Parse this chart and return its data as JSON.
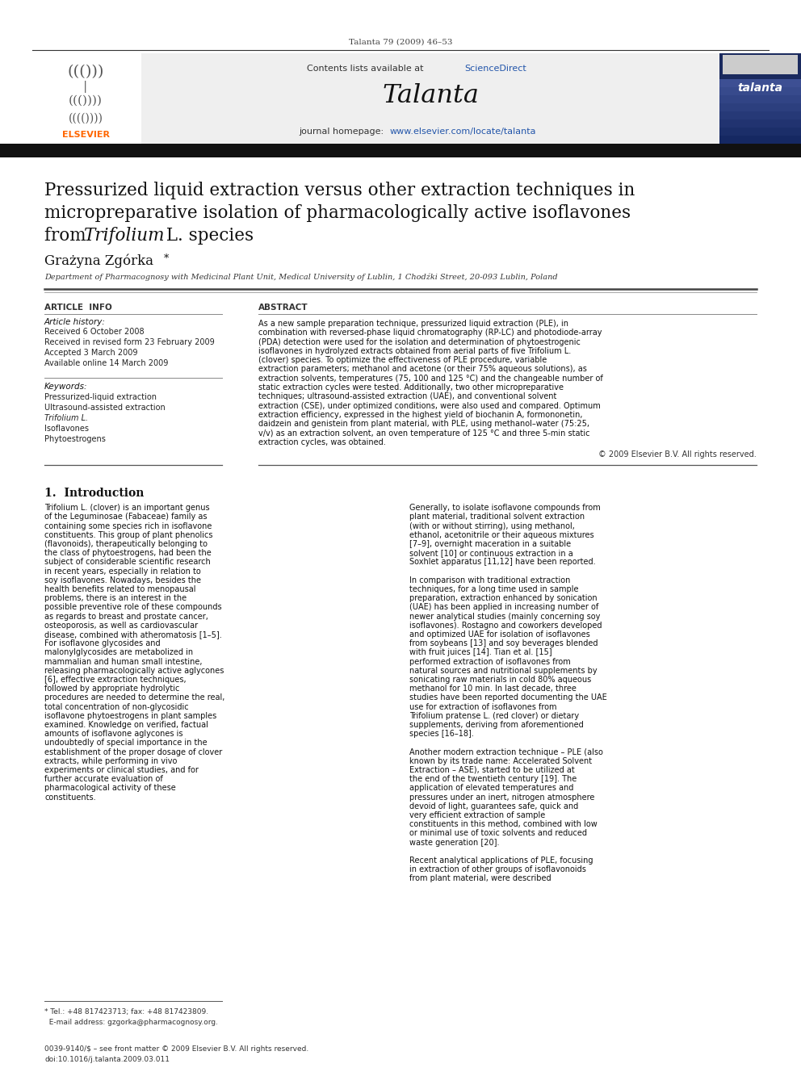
{
  "journal_info": "Talanta 79 (2009) 46–53",
  "contents_text": "Contents lists available at ScienceDirect",
  "sciencedirect_text": "ScienceDirect",
  "journal_name": "Talanta",
  "journal_homepage_prefix": "journal homepage: ",
  "journal_homepage_url": "www.elsevier.com/locate/talanta",
  "title_line1": "Pressurized liquid extraction versus other extraction techniques in",
  "title_line2": "micropreparative isolation of pharmacologically active isoflavones",
  "title_line3_pre": "from ",
  "title_line3_italic": "Trifolium",
  "title_line3_post": " L. species",
  "author_name": "Grażyna Zgórka",
  "author_star": "*",
  "affiliation": "Department of Pharmacognosy with Medicinal Plant Unit, Medical University of Lublin, 1 Chodźki Street, 20-093 Lublin, Poland",
  "article_info_header": "ARTICLE  INFO",
  "article_history_header": "Article history:",
  "received1": "Received 6 October 2008",
  "received2": "Received in revised form 23 February 2009",
  "accepted": "Accepted 3 March 2009",
  "available": "Available online 14 March 2009",
  "keywords_header": "Keywords:",
  "keywords": [
    "Pressurized-liquid extraction",
    "Ultrasound-assisted extraction",
    "Trifolium L.",
    "Isoflavones",
    "Phytoestrogens"
  ],
  "keywords_italic_index": 2,
  "abstract_header": "ABSTRACT",
  "abstract_text": "As a new sample preparation technique, pressurized liquid extraction (PLE), in combination with reversed-phase liquid chromatography (RP-LC) and photodiode-array (PDA) detection were used for the isolation and determination of phytoestrogenic isoflavones in hydrolyzed extracts obtained from aerial parts of five Trifolium L. (clover) species. To optimize the effectiveness of PLE procedure, variable extraction parameters; methanol and acetone (or their 75% aqueous solutions), as extraction solvents, temperatures (75, 100 and 125 °C) and the changeable number of static extraction cycles were tested. Additionally, two other micropreparative techniques; ultrasound-assisted extraction (UAE), and conventional solvent extraction (CSE), under optimized conditions, were also used and compared. Optimum extraction efficiency, expressed in the highest yield of biochanin A, formononetin, daidzein and genistein from plant material, with PLE, using methanol–water (75:25, v/v) as an extraction solvent, an oven temperature of 125 °C and three 5-min static extraction cycles, was obtained.",
  "copyright": "© 2009 Elsevier B.V. All rights reserved.",
  "intro_header": "1.  Introduction",
  "intro_col1_para1": "    Trifolium L. (clover) is an important genus of the Leguminosae (Fabaceae) family as containing some species rich in isoflavone constituents. This group of plant phenolics (flavonoids), therapeutically belonging to the class of phytoestrogens, had been the subject of considerable scientific research in recent years, especially in relation to soy isoflavones. Nowadays, besides the health benefits related to menopausal problems, there is an interest in the possible preventive role of these compounds as regards to breast and prostate cancer, osteoporosis, as well as cardiovascular disease, combined with atheromatosis [1–5]. For isoflavone glycosides and malonylglycosides are metabolized in mammalian and human small intestine, releasing pharmacologically active aglycones [6], effective extraction techniques, followed by appropriate hydrolytic procedures are needed to determine the real, total concentration of non-glycosidic isoflavone phytoestrogens in plant samples examined. Knowledge on verified, factual amounts of isoflavone aglycones is undoubtedly of special importance in the establishment of the proper dosage of clover extracts, while performing in vivo experiments or clinical studies, and for further accurate evaluation of pharmacological activity of these constituents.",
  "intro_col2_para1": "    Generally, to isolate isoflavone compounds from plant material, traditional solvent extraction (with or without stirring), using methanol, ethanol, acetonitrile or their aqueous mixtures [7–9], overnight maceration in a suitable solvent [10] or continuous extraction in a Soxhlet apparatus [11,12] have been reported.",
  "intro_col2_para2": "    In comparison with traditional extraction techniques, for a long time used in sample preparation, extraction enhanced by sonication (UAE) has been applied in increasing number of newer analytical studies (mainly concerning soy isoflavones). Rostagno and coworkers developed and optimized UAE for isolation of isoflavones from soybeans [13] and soy beverages blended with fruit juices [14]. Tian et al. [15] performed extraction of isoflavones from natural sources and nutritional supplements by sonicating raw materials in cold 80% aqueous methanol for 10 min. In last decade, three studies have been reported documenting the UAE use for extraction of isoflavones from Trifolium pratense L. (red clover) or dietary supplements, deriving from aforementioned species [16–18].",
  "intro_col2_para3": "    Another modern extraction technique – PLE (also known by its trade name: Accelerated Solvent Extraction – ASE), started to be utilized at the end of the twentieth century [19]. The application of elevated temperatures and pressures under an inert, nitrogen atmosphere devoid of light, guarantees safe, quick and very efficient extraction of sample constituents in this method, combined with low or minimal use of toxic solvents and reduced waste generation [20].",
  "intro_col2_para4": "    Recent analytical applications of PLE, focusing in extraction of other groups of isoflavonoids from plant material, were described",
  "footnote_line1": "* Tel.: +48 817423713; fax: +48 817423809.",
  "footnote_line2": "  E-mail address: gzgorka@pharmacognosy.org.",
  "issn_line": "0039-9140/$ – see front matter © 2009 Elsevier B.V. All rights reserved.",
  "doi_line": "doi:10.1016/j.talanta.2009.03.011",
  "bg_color": "#ffffff",
  "header_bar_color": "#111111",
  "elsevier_orange": "#FF6600",
  "link_color": "#2255AA",
  "section_bg": "#efefef"
}
